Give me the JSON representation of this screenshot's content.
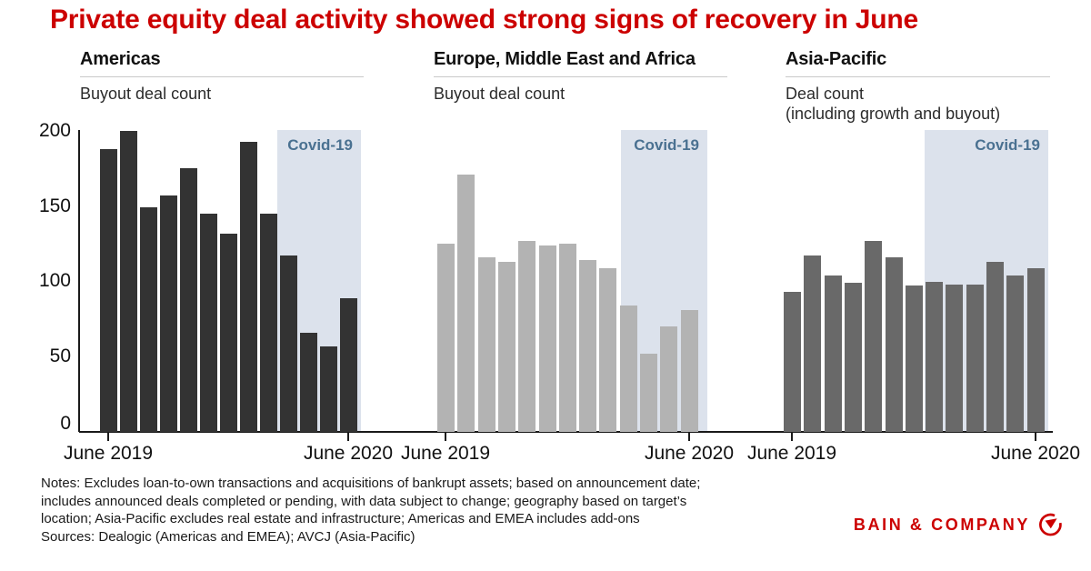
{
  "title": "Private equity deal activity showed strong signs of recovery in June",
  "covid": {
    "label": "Covid-19",
    "bg_color": "#dce2ec",
    "label_color": "#4a7191"
  },
  "y_axis": {
    "ticks": [
      "0",
      "50",
      "100",
      "150",
      "200"
    ],
    "max": 200
  },
  "x_axis": {
    "start_label": "June 2019",
    "end_label": "June 2020"
  },
  "chart_data": [
    {
      "type": "bar",
      "title": "Americas",
      "subtitle_lines": [
        "Buyout deal count"
      ],
      "categories": [
        "Jun 2019",
        "Jul 2019",
        "Aug 2019",
        "Sep 2019",
        "Oct 2019",
        "Nov 2019",
        "Dec 2019",
        "Jan 2020",
        "Feb 2020",
        "Mar 2020",
        "Apr 2020",
        "May 2020",
        "Jun 2020"
      ],
      "values": [
        188,
        200,
        149,
        157,
        175,
        145,
        132,
        193,
        145,
        117,
        66,
        57,
        89
      ],
      "ylim": [
        0,
        200
      ],
      "bar_color": "#333333",
      "covid_start_index": 9,
      "covid_note": "shaded region covers Mar 2020 through Jun 2020"
    },
    {
      "type": "bar",
      "title": "Europe, Middle East and Africa",
      "subtitle_lines": [
        "Buyout deal count"
      ],
      "categories": [
        "Jun 2019",
        "Jul 2019",
        "Aug 2019",
        "Sep 2019",
        "Oct 2019",
        "Nov 2019",
        "Dec 2019",
        "Jan 2020",
        "Feb 2020",
        "Mar 2020",
        "Apr 2020",
        "May 2020",
        "Jun 2020"
      ],
      "values": [
        125,
        171,
        116,
        113,
        127,
        124,
        125,
        114,
        109,
        84,
        52,
        70,
        81
      ],
      "ylim": [
        0,
        200
      ],
      "bar_color": "#b3b3b3",
      "covid_start_index": 9,
      "covid_note": "shaded region covers Mar 2020 through Jun 2020"
    },
    {
      "type": "bar",
      "title": "Asia-Pacific",
      "subtitle_lines": [
        "Deal count",
        "(including growth and buyout)"
      ],
      "categories": [
        "Jun 2019",
        "Jul 2019",
        "Aug 2019",
        "Sep 2019",
        "Oct 2019",
        "Nov 2019",
        "Dec 2019",
        "Jan 2020",
        "Feb 2020",
        "Mar 2020",
        "Apr 2020",
        "May 2020",
        "Jun 2020"
      ],
      "values": [
        93,
        117,
        104,
        99,
        127,
        116,
        97,
        100,
        98,
        98,
        113,
        104,
        109
      ],
      "ylim": [
        0,
        200
      ],
      "bar_color": "#696969",
      "covid_start_index": 7,
      "covid_note": "shaded region covers Jan 2020 through Jun 2020"
    }
  ],
  "notes_lines": [
    "Notes: Excludes loan-to-own transactions and acquisitions of bankrupt assets; based on announcement date;",
    "includes announced deals completed or pending, with data subject to change; geography based on target’s",
    "location; Asia-Pacific excludes real estate and infrastructure; Americas and EMEA includes add-ons",
    "Sources: Dealogic (Americas and EMEA); AVCJ (Asia-Pacific)"
  ],
  "brand": {
    "name": "BAIN & COMPANY",
    "color": "#cc0000"
  }
}
